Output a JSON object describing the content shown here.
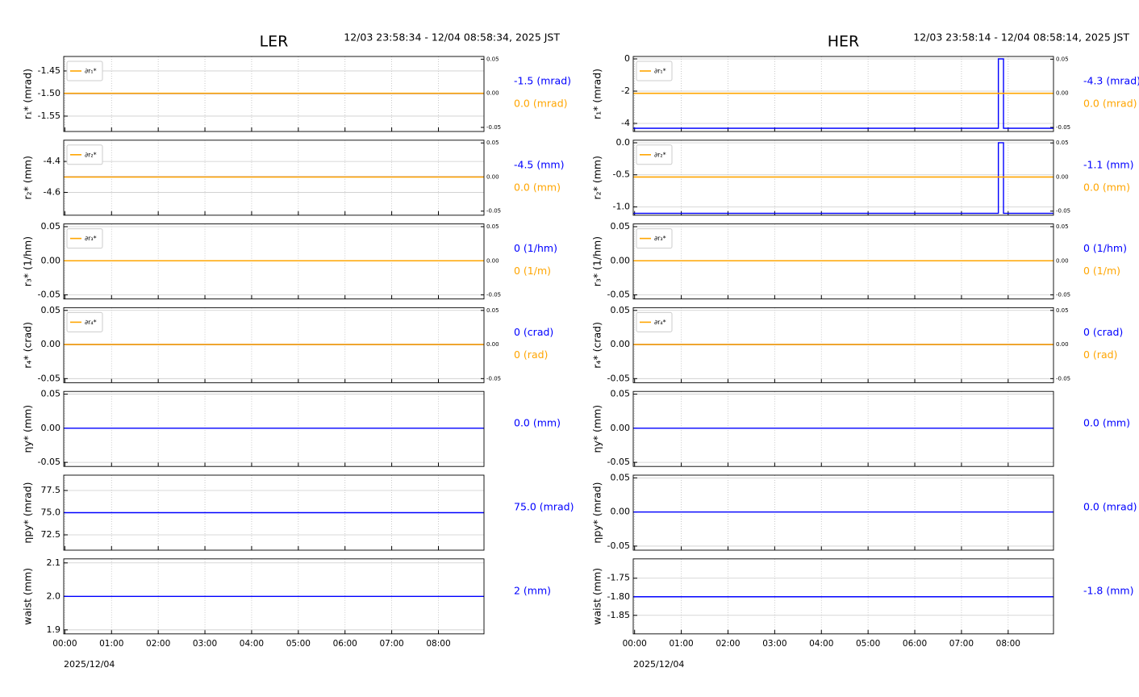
{
  "chart_data": [
    {
      "type": "line",
      "title": "LER",
      "subtitle": "12/03 23:58:34 - 12/04 08:58:34, 2025 JST",
      "ylabel": "r₁* (mrad)",
      "xlim": [
        -0.0239,
        8.9761
      ],
      "xticks": [
        0,
        1,
        2,
        3,
        4,
        5,
        6,
        7,
        8
      ],
      "ylim": [
        -1.584,
        -1.418
      ],
      "yticks": [
        -1.45,
        {
          "value": -1.5,
          "label": "-1.50"
        },
        -1.55
      ],
      "y2lim": [
        -0.056,
        0.054
      ],
      "y2ticks": [
        0.05,
        {
          "value": 0,
          "label": "0.00"
        },
        -0.05
      ],
      "grid": true,
      "legend": "upper left",
      "series": [
        {
          "color": "#0000ff",
          "x": [
            -0.0239,
            8.9761
          ],
          "values": [
            -1.5,
            -1.5
          ]
        },
        {
          "name": "∂r₁*",
          "color": "#ffa500",
          "axis": "y2",
          "x": [
            -0.0239,
            8.9761
          ],
          "values": [
            0,
            0
          ]
        }
      ],
      "annotations": [
        {
          "text": "-1.5 (mrad)",
          "color": "#0000ff"
        },
        {
          "text": "0.0 (mrad)",
          "color": "#ffa500"
        }
      ]
    },
    {
      "type": "line",
      "ylabel": "r₂* (mm)",
      "xlim": [
        -0.0239,
        8.9761
      ],
      "xticks": [
        0,
        1,
        2,
        3,
        4,
        5,
        6,
        7,
        8
      ],
      "ylim": [
        -4.747,
        -4.263
      ],
      "yticks": [
        -4.4,
        -4.6
      ],
      "y2lim": [
        -0.056,
        0.054
      ],
      "y2ticks": [
        0.05,
        {
          "value": 0,
          "label": "0.00"
        },
        -0.05
      ],
      "grid": true,
      "legend": "upper left",
      "series": [
        {
          "color": "#0000ff",
          "x": [
            -0.0239,
            8.9761
          ],
          "values": [
            -4.5,
            -4.5
          ]
        },
        {
          "name": "∂r₂*",
          "color": "#ffa500",
          "axis": "y2",
          "x": [
            -0.0239,
            8.9761
          ],
          "values": [
            0,
            0
          ]
        }
      ],
      "annotations": [
        {
          "text": "-4.5 (mm)",
          "color": "#0000ff"
        },
        {
          "text": "0.0 (mm)",
          "color": "#ffa500"
        }
      ]
    },
    {
      "type": "line",
      "ylabel": "r₃* (1/hm)",
      "xlim": [
        -0.0239,
        8.9761
      ],
      "xticks": [
        0,
        1,
        2,
        3,
        4,
        5,
        6,
        7,
        8
      ],
      "ylim": [
        -0.056,
        0.054
      ],
      "yticks": [
        0.05,
        {
          "value": 0,
          "label": "0.00"
        },
        -0.05
      ],
      "y2lim": [
        -0.056,
        0.054
      ],
      "y2ticks": [
        0.05,
        {
          "value": 0,
          "label": "0.00"
        },
        -0.05
      ],
      "grid": true,
      "legend": "upper left",
      "series": [
        {
          "color": "#0000ff",
          "x": [
            -0.0239,
            8.9761
          ],
          "values": [
            0,
            0
          ]
        },
        {
          "name": "∂r₃*",
          "color": "#ffa500",
          "axis": "y2",
          "x": [
            -0.0239,
            8.9761
          ],
          "values": [
            0,
            0
          ]
        }
      ],
      "annotations": [
        {
          "text": "0 (1/hm)",
          "color": "#0000ff"
        },
        {
          "text": "0 (1/m)",
          "color": "#ffa500"
        }
      ]
    },
    {
      "type": "line",
      "ylabel": "r₄* (crad)",
      "xlim": [
        -0.0239,
        8.9761
      ],
      "xticks": [
        0,
        1,
        2,
        3,
        4,
        5,
        6,
        7,
        8
      ],
      "ylim": [
        -0.056,
        0.054
      ],
      "yticks": [
        0.05,
        {
          "value": 0,
          "label": "0.00"
        },
        -0.05
      ],
      "y2lim": [
        -0.056,
        0.054
      ],
      "y2ticks": [
        0.05,
        {
          "value": 0,
          "label": "0.00"
        },
        -0.05
      ],
      "grid": true,
      "legend": "upper left",
      "series": [
        {
          "color": "#0000ff",
          "x": [
            -0.0239,
            8.9761
          ],
          "values": [
            0,
            0
          ]
        },
        {
          "name": "∂r₄*",
          "color": "#ffa500",
          "axis": "y2",
          "x": [
            -0.0239,
            8.9761
          ],
          "values": [
            0,
            0
          ]
        }
      ],
      "annotations": [
        {
          "text": "0 (crad)",
          "color": "#0000ff"
        },
        {
          "text": "0 (rad)",
          "color": "#ffa500"
        }
      ]
    },
    {
      "type": "line",
      "ylabel": "ηy* (mm)",
      "xlim": [
        -0.0239,
        8.9761
      ],
      "xticks": [
        0,
        1,
        2,
        3,
        4,
        5,
        6,
        7,
        8
      ],
      "ylim": [
        -0.056,
        0.054
      ],
      "yticks": [
        0.05,
        {
          "value": 0,
          "label": "0.00"
        },
        -0.05
      ],
      "grid": true,
      "series": [
        {
          "color": "#0000ff",
          "x": [
            -0.0239,
            8.9761
          ],
          "values": [
            0,
            0
          ]
        }
      ],
      "annotations": [
        {
          "text": "0.0 (mm)",
          "color": "#0000ff"
        }
      ]
    },
    {
      "type": "line",
      "ylabel": "ηpy* (mrad)",
      "xlim": [
        -0.0239,
        8.9761
      ],
      "xticks": [
        0,
        1,
        2,
        3,
        4,
        5,
        6,
        7,
        8
      ],
      "ylim": [
        70.77,
        79.23
      ],
      "yticks": [
        77.5,
        {
          "value": 75,
          "label": "75.0"
        },
        72.5
      ],
      "grid": true,
      "series": [
        {
          "color": "#0000ff",
          "x": [
            -0.0239,
            8.9761
          ],
          "values": [
            75,
            75
          ]
        }
      ],
      "annotations": [
        {
          "text": "75.0 (mrad)",
          "color": "#0000ff"
        }
      ]
    },
    {
      "type": "line",
      "ylabel": "waist (mm)",
      "xlabel": "2025/12/04",
      "xlim": [
        -0.0239,
        8.9761
      ],
      "xticks": [
        {
          "value": 0,
          "label": "00:00"
        },
        {
          "value": 1,
          "label": "01:00"
        },
        {
          "value": 2,
          "label": "02:00"
        },
        {
          "value": 3,
          "label": "03:00"
        },
        {
          "value": 4,
          "label": "04:00"
        },
        {
          "value": 5,
          "label": "05:00"
        },
        {
          "value": 6,
          "label": "06:00"
        },
        {
          "value": 7,
          "label": "07:00"
        },
        {
          "value": 8,
          "label": "08:00"
        }
      ],
      "ylim": [
        1.888,
        2.112
      ],
      "yticks": [
        2.1,
        {
          "value": 2,
          "label": "2.0"
        },
        1.9
      ],
      "grid": true,
      "series": [
        {
          "color": "#0000ff",
          "x": [
            -0.0239,
            8.9761
          ],
          "values": [
            2,
            2
          ]
        }
      ],
      "annotations": [
        {
          "text": "2 (mm)",
          "color": "#0000ff"
        }
      ]
    },
    {
      "type": "line",
      "title": "HER",
      "subtitle": "12/03 23:58:14 - 12/04 08:58:14, 2025 JST",
      "ylabel": "r₁* (mrad)",
      "xlim": [
        -0.0294,
        8.9706
      ],
      "xticks": [
        0,
        1,
        2,
        3,
        4,
        5,
        6,
        7,
        8
      ],
      "ylim": [
        -4.5,
        0.15
      ],
      "yticks": [
        0,
        -2,
        -4
      ],
      "y2lim": [
        -0.056,
        0.054
      ],
      "y2ticks": [
        0.05,
        {
          "value": 0,
          "label": "0.00"
        },
        -0.05
      ],
      "grid": true,
      "legend": "upper left",
      "series": [
        {
          "color": "#0000ff",
          "x": [
            -0.0294,
            7.79,
            7.79,
            7.9,
            7.9,
            8.9706
          ],
          "values": [
            -4.3,
            -4.3,
            0,
            0,
            -4.3,
            -4.3
          ]
        },
        {
          "name": "∂r₁*",
          "color": "#ffa500",
          "axis": "y2",
          "x": [
            -0.0294,
            8.9706
          ],
          "values": [
            0,
            0
          ]
        }
      ],
      "annotations": [
        {
          "text": "-4.3 (mrad)",
          "color": "#0000ff"
        },
        {
          "text": "0.0 (mrad)",
          "color": "#ffa500"
        }
      ]
    },
    {
      "type": "line",
      "ylabel": "r₂* (mm)",
      "xlim": [
        -0.0294,
        8.9706
      ],
      "xticks": [
        0,
        1,
        2,
        3,
        4,
        5,
        6,
        7,
        8
      ],
      "ylim": [
        -1.13,
        0.04
      ],
      "yticks": [
        {
          "value": 0,
          "label": "0.0"
        },
        -0.5,
        {
          "value": -1,
          "label": "-1.0"
        }
      ],
      "y2lim": [
        -0.056,
        0.054
      ],
      "y2ticks": [
        0.05,
        {
          "value": 0,
          "label": "0.00"
        },
        -0.05
      ],
      "grid": true,
      "legend": "upper left",
      "series": [
        {
          "color": "#0000ff",
          "x": [
            -0.0294,
            7.79,
            7.79,
            7.9,
            7.9,
            8.9706
          ],
          "values": [
            -1.1,
            -1.1,
            0,
            0,
            -1.1,
            -1.1
          ]
        },
        {
          "name": "∂r₂*",
          "color": "#ffa500",
          "axis": "y2",
          "x": [
            -0.0294,
            8.9706
          ],
          "values": [
            0,
            0
          ]
        }
      ],
      "annotations": [
        {
          "text": "-1.1 (mm)",
          "color": "#0000ff"
        },
        {
          "text": "0.0 (mm)",
          "color": "#ffa500"
        }
      ]
    },
    {
      "type": "line",
      "ylabel": "r₃* (1/hm)",
      "xlim": [
        -0.0294,
        8.9706
      ],
      "xticks": [
        0,
        1,
        2,
        3,
        4,
        5,
        6,
        7,
        8
      ],
      "ylim": [
        -0.056,
        0.054
      ],
      "yticks": [
        0.05,
        {
          "value": 0,
          "label": "0.00"
        },
        -0.05
      ],
      "y2lim": [
        -0.056,
        0.054
      ],
      "y2ticks": [
        0.05,
        {
          "value": 0,
          "label": "0.00"
        },
        -0.05
      ],
      "grid": true,
      "legend": "upper left",
      "series": [
        {
          "color": "#0000ff",
          "x": [
            -0.0294,
            8.9706
          ],
          "values": [
            0,
            0
          ]
        },
        {
          "name": "∂r₃*",
          "color": "#ffa500",
          "axis": "y2",
          "x": [
            -0.0294,
            8.9706
          ],
          "values": [
            0,
            0
          ]
        }
      ],
      "annotations": [
        {
          "text": "0 (1/hm)",
          "color": "#0000ff"
        },
        {
          "text": "0 (1/m)",
          "color": "#ffa500"
        }
      ]
    },
    {
      "type": "line",
      "ylabel": "r₄* (crad)",
      "xlim": [
        -0.0294,
        8.9706
      ],
      "xticks": [
        0,
        1,
        2,
        3,
        4,
        5,
        6,
        7,
        8
      ],
      "ylim": [
        -0.056,
        0.054
      ],
      "yticks": [
        0.05,
        {
          "value": 0,
          "label": "0.00"
        },
        -0.05
      ],
      "y2lim": [
        -0.056,
        0.054
      ],
      "y2ticks": [
        0.05,
        {
          "value": 0,
          "label": "0.00"
        },
        -0.05
      ],
      "grid": true,
      "legend": "upper left",
      "series": [
        {
          "color": "#0000ff",
          "x": [
            -0.0294,
            8.9706
          ],
          "values": [
            0,
            0
          ]
        },
        {
          "name": "∂r₄*",
          "color": "#ffa500",
          "axis": "y2",
          "x": [
            -0.0294,
            8.9706
          ],
          "values": [
            0,
            0
          ]
        }
      ],
      "annotations": [
        {
          "text": "0 (crad)",
          "color": "#0000ff"
        },
        {
          "text": "0 (rad)",
          "color": "#ffa500"
        }
      ]
    },
    {
      "type": "line",
      "ylabel": "ηy* (mm)",
      "xlim": [
        -0.0294,
        8.9706
      ],
      "xticks": [
        0,
        1,
        2,
        3,
        4,
        5,
        6,
        7,
        8
      ],
      "ylim": [
        -0.056,
        0.054
      ],
      "yticks": [
        0.05,
        {
          "value": 0,
          "label": "0.00"
        },
        -0.05
      ],
      "grid": true,
      "series": [
        {
          "color": "#0000ff",
          "x": [
            -0.0294,
            8.9706
          ],
          "values": [
            0,
            0
          ]
        }
      ],
      "annotations": [
        {
          "text": "0.0 (mm)",
          "color": "#0000ff"
        }
      ]
    },
    {
      "type": "line",
      "ylabel": "ηpy* (mrad)",
      "xlim": [
        -0.0294,
        8.9706
      ],
      "xticks": [
        0,
        1,
        2,
        3,
        4,
        5,
        6,
        7,
        8
      ],
      "ylim": [
        -0.056,
        0.054
      ],
      "yticks": [
        0.05,
        {
          "value": 0,
          "label": "0.00"
        },
        -0.05
      ],
      "grid": true,
      "series": [
        {
          "color": "#0000ff",
          "x": [
            -0.0294,
            8.9706
          ],
          "values": [
            0,
            0
          ]
        }
      ],
      "annotations": [
        {
          "text": "0.0 (mrad)",
          "color": "#0000ff"
        }
      ]
    },
    {
      "type": "line",
      "ylabel": "waist (mm)",
      "xlabel": "2025/12/04",
      "xlim": [
        -0.0294,
        8.9706
      ],
      "xticks": [
        {
          "value": 0,
          "label": "00:00"
        },
        {
          "value": 1,
          "label": "01:00"
        },
        {
          "value": 2,
          "label": "02:00"
        },
        {
          "value": 3,
          "label": "03:00"
        },
        {
          "value": 4,
          "label": "04:00"
        },
        {
          "value": 5,
          "label": "05:00"
        },
        {
          "value": 6,
          "label": "06:00"
        },
        {
          "value": 7,
          "label": "07:00"
        },
        {
          "value": 8,
          "label": "08:00"
        }
      ],
      "ylim": [
        -1.9,
        -1.698
      ],
      "yticks": [
        -1.75,
        {
          "value": -1.8,
          "label": "-1.80"
        },
        -1.85
      ],
      "grid": true,
      "series": [
        {
          "color": "#0000ff",
          "x": [
            -0.0294,
            8.9706
          ],
          "values": [
            -1.8,
            -1.8
          ]
        }
      ],
      "annotations": [
        {
          "text": "-1.8 (mm)",
          "color": "#0000ff"
        }
      ]
    }
  ]
}
